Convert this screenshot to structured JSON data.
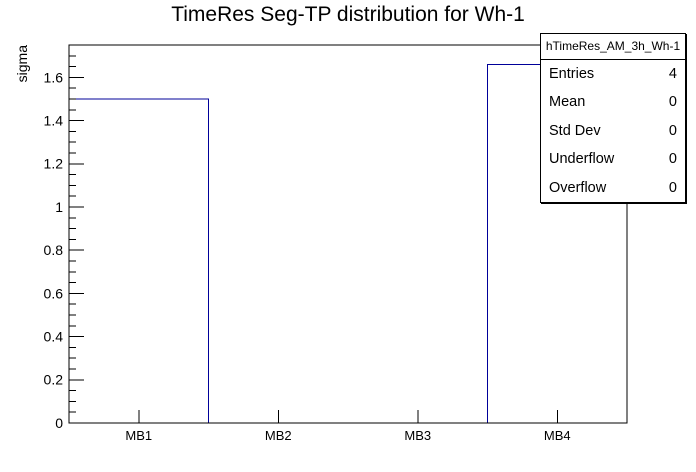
{
  "chart_data": {
    "type": "bar",
    "subtype": "root-histogram-outline",
    "title": "TimeRes Seg-TP distribution for Wh-1",
    "xlabel": "",
    "ylabel": "sigma",
    "categories": [
      "MB1",
      "MB2",
      "MB3",
      "MB4"
    ],
    "values": [
      1.5,
      0,
      0,
      1.66
    ],
    "ylim": [
      0,
      1.75
    ],
    "ytick_major_step": 0.2,
    "ytick_minor_step": 0.05,
    "ytick_labels": [
      "0",
      "0.2",
      "0.4",
      "0.6",
      "0.8",
      "1",
      "1.2",
      "1.4",
      "1.6"
    ],
    "grid": false,
    "legend": "none",
    "line_color": "#000099",
    "frame_color": "#000000",
    "background_color": "#ffffff"
  },
  "stats_box": {
    "title": "hTimeRes_AM_3h_Wh-1",
    "rows": [
      {
        "label": "Entries",
        "value": "4"
      },
      {
        "label": "Mean",
        "value": "0"
      },
      {
        "label": "Std Dev",
        "value": "0"
      },
      {
        "label": "Underflow",
        "value": "0"
      },
      {
        "label": "Overflow",
        "value": "0"
      }
    ]
  }
}
